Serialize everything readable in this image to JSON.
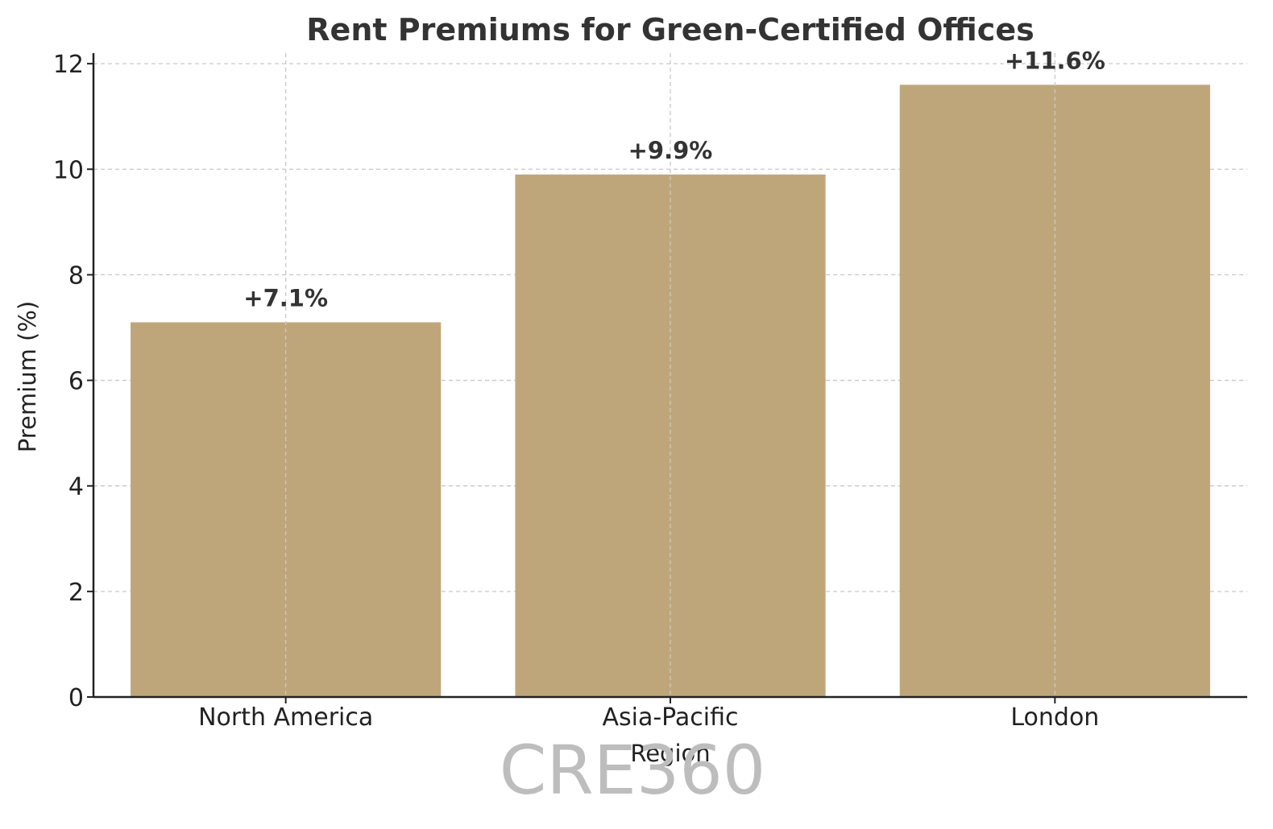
{
  "chart_data": {
    "type": "bar",
    "title": "Rent Premiums for Green-Certified Offices",
    "xlabel": "Region",
    "ylabel": "Premium (%)",
    "categories": [
      "North America",
      "Asia-Pacific",
      "London"
    ],
    "values": [
      7.1,
      9.9,
      11.6
    ],
    "data_labels": [
      "+7.1%",
      "+9.9%",
      "+11.6%"
    ],
    "ylim": [
      0,
      12.2
    ],
    "yticks": [
      0,
      2,
      4,
      6,
      8,
      10,
      12
    ],
    "grid": true,
    "bar_color": "#bfa67a"
  },
  "watermark": "CRE360"
}
